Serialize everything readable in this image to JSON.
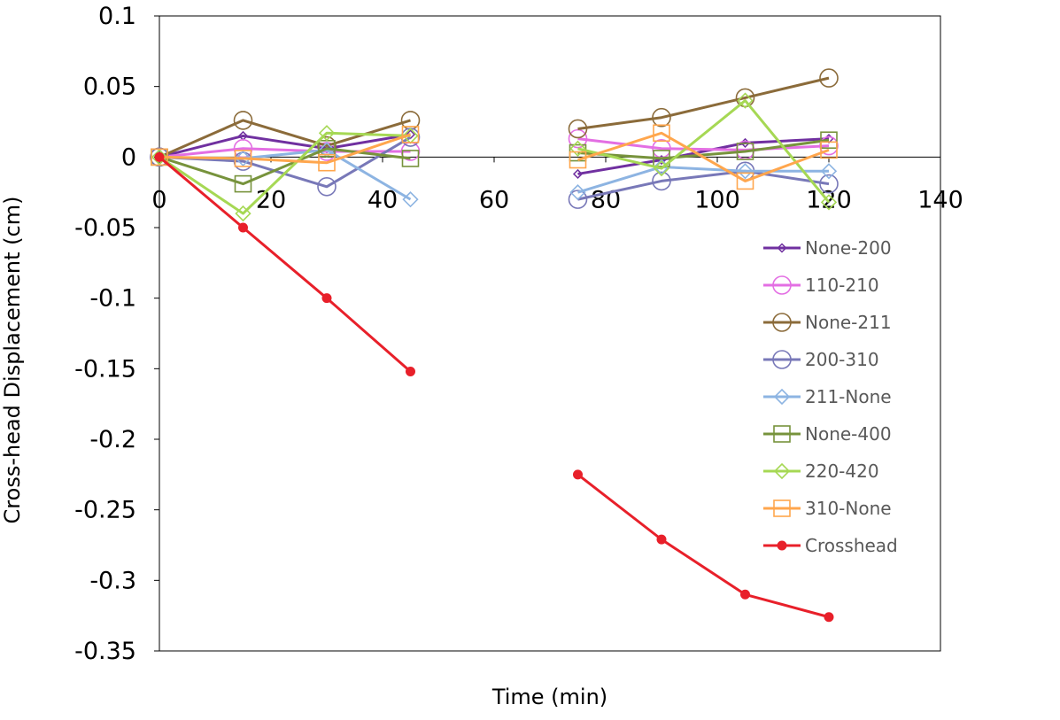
{
  "chart_data": {
    "type": "line",
    "title": "",
    "xlabel": "Time (min)",
    "ylabel": "Cross-head Displacement (cm)",
    "xlim": [
      0,
      140
    ],
    "ylim": [
      -0.35,
      0.1
    ],
    "x_ticks": [
      0,
      20,
      40,
      60,
      80,
      100,
      120,
      140
    ],
    "y_ticks": [
      0.1,
      0.05,
      0,
      -0.05,
      -0.1,
      -0.15,
      -0.2,
      -0.25,
      -0.3,
      -0.35
    ],
    "x_tick_labels": [
      "0",
      "20",
      "40",
      "60",
      "80",
      "100",
      "120",
      "140"
    ],
    "y_tick_labels": [
      "0.1",
      "0.05",
      "0",
      "-0.05",
      "-0.1",
      "-0.15",
      "-0.2",
      "-0.25",
      "-0.3",
      "-0.35"
    ],
    "grid": false,
    "legend_position": "right",
    "series": [
      {
        "name": "None-200",
        "color": "#7030A0",
        "marker": "diamond-small",
        "segments": [
          [
            [
              0,
              0
            ],
            [
              15,
              0.015
            ],
            [
              30,
              0.006
            ],
            [
              45,
              0.016
            ]
          ],
          [
            [
              75,
              -0.012
            ],
            [
              90,
              -0.002
            ],
            [
              105,
              0.01
            ],
            [
              120,
              0.013
            ]
          ]
        ]
      },
      {
        "name": "110-210",
        "color": "#E36FE3",
        "marker": "circle",
        "segments": [
          [
            [
              0,
              0
            ],
            [
              15,
              0.006
            ],
            [
              30,
              0.004
            ],
            [
              45,
              0.004
            ]
          ],
          [
            [
              75,
              0.013
            ],
            [
              90,
              0.006
            ],
            [
              105,
              0.005
            ],
            [
              120,
              0.008
            ]
          ]
        ]
      },
      {
        "name": "None-211",
        "color": "#8B6B3A",
        "marker": "circle",
        "segments": [
          [
            [
              0,
              0
            ],
            [
              15,
              0.026
            ],
            [
              30,
              0.008
            ],
            [
              45,
              0.026
            ]
          ],
          [
            [
              75,
              0.02
            ],
            [
              90,
              0.028
            ],
            [
              105,
              0.042
            ],
            [
              120,
              0.056
            ]
          ]
        ]
      },
      {
        "name": "200-310",
        "color": "#7878B8",
        "marker": "circle",
        "segments": [
          [
            [
              0,
              0
            ],
            [
              15,
              -0.003
            ],
            [
              30,
              -0.021
            ],
            [
              45,
              0.014
            ]
          ],
          [
            [
              75,
              -0.03
            ],
            [
              90,
              -0.017
            ],
            [
              105,
              -0.01
            ],
            [
              120,
              -0.019
            ]
          ]
        ]
      },
      {
        "name": "211-None",
        "color": "#8DB4E2",
        "marker": "diamond",
        "segments": [
          [
            [
              0,
              0
            ],
            [
              15,
              -0.001
            ],
            [
              30,
              0.005
            ],
            [
              45,
              -0.03
            ]
          ],
          [
            [
              75,
              -0.025
            ],
            [
              90,
              -0.007
            ],
            [
              105,
              -0.01
            ],
            [
              120,
              -0.01
            ]
          ]
        ]
      },
      {
        "name": "None-400",
        "color": "#77933C",
        "marker": "square",
        "segments": [
          [
            [
              0,
              0
            ],
            [
              15,
              -0.019
            ],
            [
              30,
              0.006
            ],
            [
              45,
              -0.001
            ]
          ],
          [
            [
              75,
              0.003
            ],
            [
              90,
              -0.001
            ],
            [
              105,
              0.004
            ],
            [
              120,
              0.012
            ]
          ]
        ]
      },
      {
        "name": "220-420",
        "color": "#A6D854",
        "marker": "diamond",
        "segments": [
          [
            [
              0,
              0
            ],
            [
              15,
              -0.04
            ],
            [
              30,
              0.017
            ],
            [
              45,
              0.015
            ]
          ],
          [
            [
              75,
              0.006
            ],
            [
              90,
              -0.008
            ],
            [
              105,
              0.04
            ],
            [
              120,
              -0.032
            ]
          ]
        ]
      },
      {
        "name": "310-None",
        "color": "#FFA64D",
        "marker": "square",
        "segments": [
          [
            [
              0,
              0
            ],
            [
              15,
              -0.001
            ],
            [
              30,
              -0.004
            ],
            [
              45,
              0.016
            ]
          ],
          [
            [
              75,
              -0.002
            ],
            [
              90,
              0.017
            ],
            [
              105,
              -0.017
            ],
            [
              120,
              0.005
            ]
          ]
        ]
      },
      {
        "name": "Crosshead",
        "color": "#E8202A",
        "marker": "dot",
        "segments": [
          [
            [
              0,
              0
            ],
            [
              15,
              -0.05
            ],
            [
              30,
              -0.1
            ],
            [
              45,
              -0.152
            ]
          ],
          [
            [
              75,
              -0.225
            ],
            [
              90,
              -0.271
            ],
            [
              105,
              -0.31
            ],
            [
              120,
              -0.326
            ]
          ]
        ]
      }
    ]
  }
}
